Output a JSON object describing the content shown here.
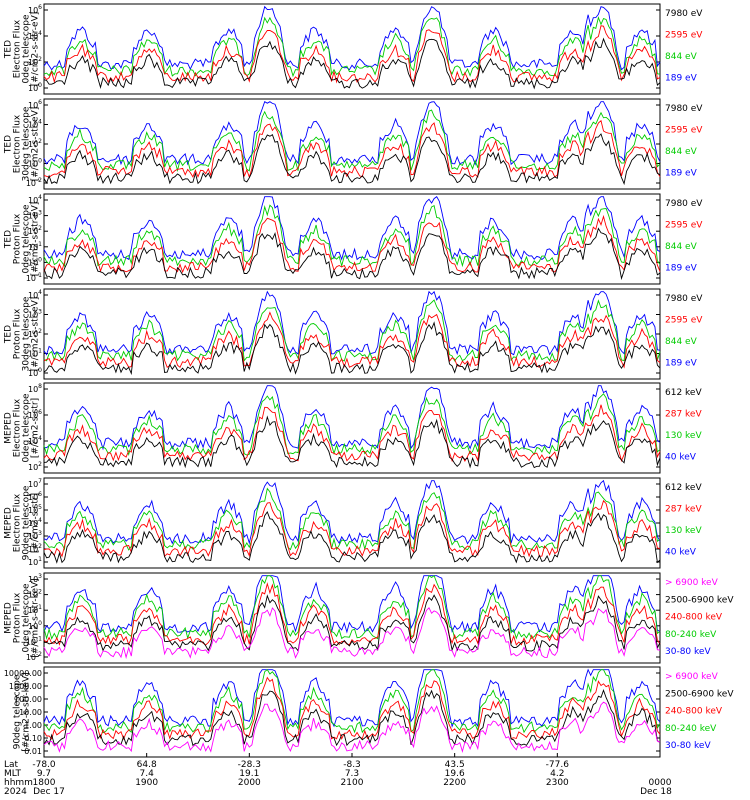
{
  "chart_data": {
    "type": "line",
    "x_axis": {
      "ticks": [
        {
          "lat": "-78.0",
          "mlt": "9.7",
          "hhmm": "1800"
        },
        {
          "lat": "64.8",
          "mlt": "7.4",
          "hhmm": "1900"
        },
        {
          "lat": "-28.3",
          "mlt": "19.1",
          "hhmm": "2000"
        },
        {
          "lat": "-8.3",
          "mlt": "7.3",
          "hhmm": "2100"
        },
        {
          "lat": "43.5",
          "mlt": "19.6",
          "hhmm": "2200"
        },
        {
          "lat": "-77.6",
          "mlt": "4.2",
          "hhmm": "2300"
        },
        {
          "lat": "",
          "mlt": "",
          "hhmm": "0000"
        }
      ],
      "row_labels": [
        "Lat",
        "MLT",
        "hhmm",
        "2024"
      ],
      "date_start": "Dec 17",
      "date_end": "Dec 18"
    },
    "panels": [
      {
        "ylabel": [
          "TED",
          "Electron Flux",
          "0deg telescope",
          "[#/cm2-s-str-eV]"
        ],
        "ytick_labels": [
          "10^6",
          "10^4",
          "10^2",
          "10^0"
        ],
        "series": [
          {
            "name": "7980 eV",
            "color": "#000000"
          },
          {
            "name": "2595 eV",
            "color": "#ff0000"
          },
          {
            "name": "844 eV",
            "color": "#00cc00"
          },
          {
            "name": "189 eV",
            "color": "#0000ff"
          }
        ]
      },
      {
        "ylabel": [
          "TED",
          "Electron Flux",
          "30deg telescope",
          "[#/cm2-s-str-eV]"
        ],
        "ytick_labels": [
          "10^6",
          "10^4",
          "10^2",
          "10^0",
          "10^-2"
        ],
        "series": [
          {
            "name": "7980 eV",
            "color": "#000000"
          },
          {
            "name": "2595 eV",
            "color": "#ff0000"
          },
          {
            "name": "844 eV",
            "color": "#00cc00"
          },
          {
            "name": "189 eV",
            "color": "#0000ff"
          }
        ]
      },
      {
        "ylabel": [
          "TED",
          "Proton Flux",
          "0deg telescope",
          "[#/cm2-s-str-eV]"
        ],
        "ytick_labels": [
          "10^4",
          "10^3",
          "10^2",
          "10^1",
          "10^0",
          "10^-1"
        ],
        "series": [
          {
            "name": "7980 eV",
            "color": "#000000"
          },
          {
            "name": "2595 eV",
            "color": "#ff0000"
          },
          {
            "name": "844 eV",
            "color": "#00cc00"
          },
          {
            "name": "189 eV",
            "color": "#0000ff"
          }
        ]
      },
      {
        "ylabel": [
          "TED",
          "Proton Flux",
          "30deg telescope",
          "[#/cm2-s-str-eV]"
        ],
        "ytick_labels": [
          "10^4",
          "10^3",
          "10^2",
          "10^1",
          "10^0"
        ],
        "series": [
          {
            "name": "7980 eV",
            "color": "#000000"
          },
          {
            "name": "2595 eV",
            "color": "#ff0000"
          },
          {
            "name": "844 eV",
            "color": "#00cc00"
          },
          {
            "name": "189 eV",
            "color": "#0000ff"
          }
        ]
      },
      {
        "ylabel": [
          "MEPED",
          "Electron Flux",
          "0deg telescope",
          "[#/cm2-s-str]"
        ],
        "ytick_labels": [
          "10^8",
          "10^6",
          "10^4",
          "10^2"
        ],
        "series": [
          {
            "name": "612 keV",
            "color": "#000000"
          },
          {
            "name": "287 keV",
            "color": "#ff0000"
          },
          {
            "name": "130 keV",
            "color": "#00cc00"
          },
          {
            "name": "40 keV",
            "color": "#0000ff"
          }
        ]
      },
      {
        "ylabel": [
          "MEPED",
          "Electron Flux",
          "90deg telescope",
          "[#/cm2-s-str]"
        ],
        "ytick_labels": [
          "10^7",
          "10^6",
          "10^5",
          "10^4",
          "10^3",
          "10^2",
          "10^1"
        ],
        "series": [
          {
            "name": "612 keV",
            "color": "#000000"
          },
          {
            "name": "287 keV",
            "color": "#ff0000"
          },
          {
            "name": "130 keV",
            "color": "#00cc00"
          },
          {
            "name": "40 keV",
            "color": "#0000ff"
          }
        ]
      },
      {
        "ylabel": [
          "MEPED",
          "Proton Flux",
          "0deg telescope",
          "[#/cm2-s-str-keV]"
        ],
        "ytick_labels": [
          "10^3",
          "10^2",
          "10^1",
          "10^0",
          "10^-1",
          "10^-2"
        ],
        "series": [
          {
            "name": "> 6900 keV",
            "color": "#ff00ff"
          },
          {
            "name": "2500-6900 keV",
            "color": "#000000"
          },
          {
            "name": "240-800 keV",
            "color": "#ff0000"
          },
          {
            "name": "80-240 keV",
            "color": "#00cc00"
          },
          {
            "name": "30-80 keV",
            "color": "#0000ff"
          }
        ]
      },
      {
        "ylabel": [
          "90deg telescope",
          "[#/cm2-s-str-keV]"
        ],
        "ytick_labels": [
          "10000.00",
          "1000.00",
          "100.00",
          "10.00",
          "1.00",
          "0.10",
          "0.01"
        ],
        "series": [
          {
            "name": "> 6900 keV",
            "color": "#ff00ff"
          },
          {
            "name": "2500-6900 keV",
            "color": "#000000"
          },
          {
            "name": "240-800 keV",
            "color": "#ff0000"
          },
          {
            "name": "80-240 keV",
            "color": "#00cc00"
          },
          {
            "name": "30-80 keV",
            "color": "#0000ff"
          }
        ]
      }
    ]
  }
}
